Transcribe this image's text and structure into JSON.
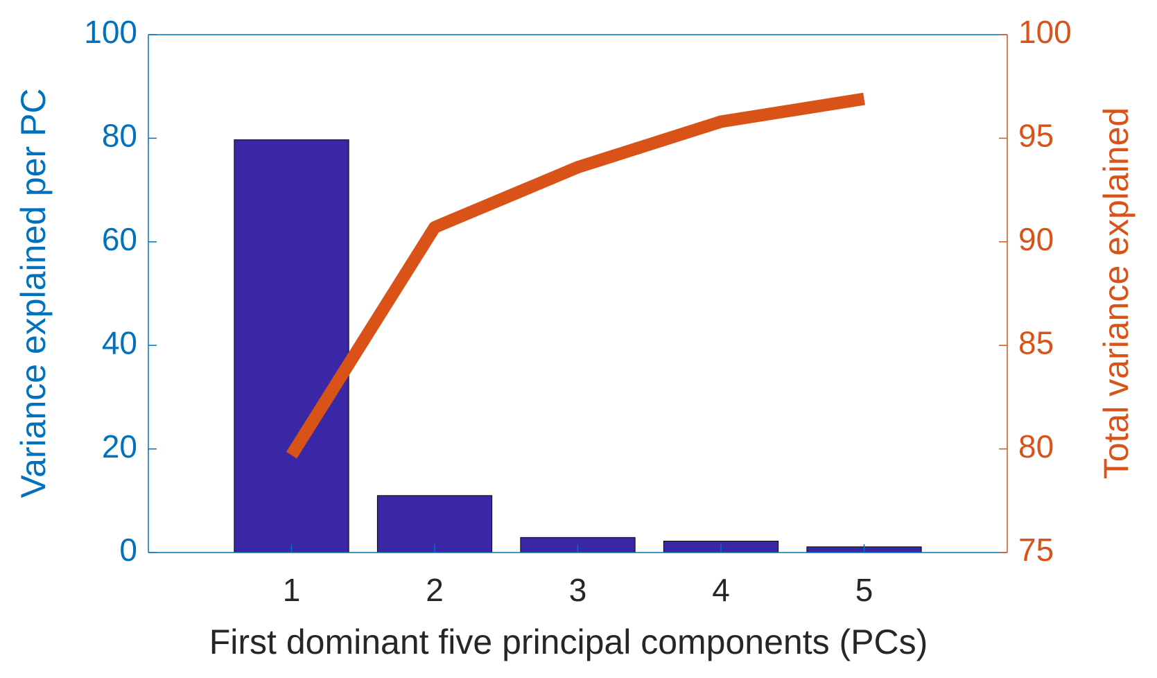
{
  "chart_data": {
    "type": "bar",
    "x": [
      1,
      2,
      3,
      4,
      5
    ],
    "xlim": [
      0,
      6
    ],
    "xticks": [
      1,
      2,
      3,
      4,
      5
    ],
    "xlabel": "First dominant five principal components (PCs)",
    "ylabel": "Variance explained per PC",
    "y2label": "Total variance explained",
    "ylim": [
      0,
      100
    ],
    "yticks": [
      0,
      20,
      40,
      60,
      80,
      100
    ],
    "y2lim": [
      75,
      100
    ],
    "y2ticks": [
      75,
      80,
      85,
      90,
      95,
      100
    ],
    "ycolor": "#0072bd",
    "y2color": "#d95319",
    "series": [
      {
        "type": "bar",
        "color": "#3a27a5",
        "values": [
          79.7,
          11.0,
          2.9,
          2.2,
          1.1
        ]
      },
      {
        "type": "line",
        "axis": "y2",
        "color": "#d95319",
        "values": [
          79.7,
          90.7,
          93.6,
          95.8,
          96.9
        ]
      }
    ]
  }
}
